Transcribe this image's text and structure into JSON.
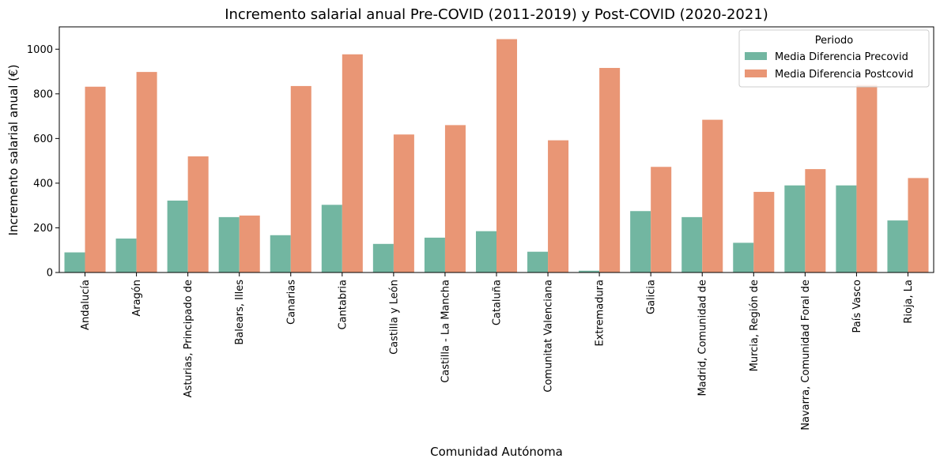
{
  "chart_data": {
    "type": "bar",
    "title": "Incremento salarial anual Pre-COVID (2011-2019) y Post-COVID (2020-2021)",
    "xlabel": "Comunidad Autónoma",
    "ylabel": "Incremento salarial anual (€)",
    "ylim": [
      0,
      1100
    ],
    "yticks": [
      0,
      200,
      400,
      600,
      800,
      1000
    ],
    "grid": false,
    "legend": {
      "title": "Periodo",
      "placement": "top-right"
    },
    "categories": [
      "Andalucía",
      "Aragón",
      "Asturias, Principado de",
      "Balears, Illes",
      "Canarias",
      "Cantabria",
      "Castilla y León",
      "Castilla - La Mancha",
      "Cataluña",
      "Comunitat Valenciana",
      "Extremadura",
      "Galicia",
      "Madrid, Comunidad de",
      "Murcia, Región de",
      "Navarra, Comunidad Foral de",
      "País Vasco",
      "Rioja, La"
    ],
    "series": [
      {
        "name": "Media Diferencia Precovid",
        "color": "#72b6a1",
        "values": [
          90,
          152,
          322,
          248,
          167,
          303,
          128,
          156,
          185,
          93,
          8,
          275,
          248,
          133,
          390,
          390,
          233
        ]
      },
      {
        "name": "Media Diferencia Postcovid",
        "color": "#e99675",
        "values": [
          832,
          898,
          520,
          255,
          835,
          977,
          618,
          660,
          1045,
          592,
          916,
          473,
          684,
          361,
          463,
          840,
          423
        ]
      }
    ]
  }
}
